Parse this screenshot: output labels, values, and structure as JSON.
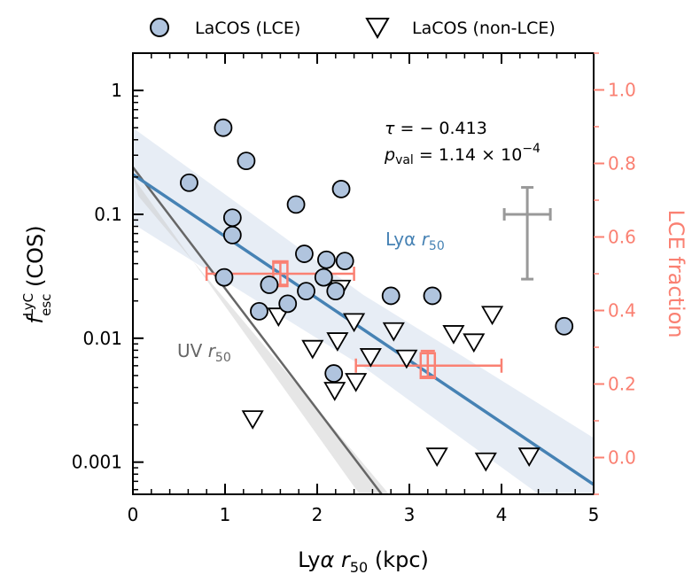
{
  "chart_data": {
    "type": "scatter",
    "x_axis": {
      "label_prefix": "Ly",
      "label_greek": "α",
      "label_var": "r",
      "label_sub": "50",
      "label_suffix": " (kpc)",
      "range": [
        0,
        5
      ],
      "ticks": [
        "0",
        "1",
        "2",
        "3",
        "4",
        "5"
      ]
    },
    "y_axis": {
      "label_var": "f",
      "label_sup": "LyC",
      "label_sub": "esc",
      "label_suffix": " (COS)",
      "scale": "log",
      "range": [
        0.00055,
        2.0
      ],
      "ticks": [
        {
          "v": 1,
          "label": "1"
        },
        {
          "v": 0.1,
          "label": "0.1"
        },
        {
          "v": 0.01,
          "label": "0.01"
        },
        {
          "v": 0.001,
          "label": "0.001"
        }
      ]
    },
    "y2_axis": {
      "label": "LCE fraction",
      "color": "#FA8072",
      "range": [
        -0.1,
        1.1
      ],
      "ticks": [
        "0.0",
        "0.2",
        "0.4",
        "0.6",
        "0.8",
        "1.0"
      ]
    },
    "legend": [
      {
        "label": "LaCOS (LCE)",
        "marker": "circle",
        "color": "#B0C4DE"
      },
      {
        "label": "LaCOS (non-LCE)",
        "marker": "triangle-down",
        "color": "#ffffff"
      }
    ],
    "series": [
      {
        "name": "LaCOS (LCE)",
        "points": [
          [
            0.98,
            0.5
          ],
          [
            1.23,
            0.27
          ],
          [
            0.61,
            0.18
          ],
          [
            1.77,
            0.12
          ],
          [
            2.26,
            0.16
          ],
          [
            1.08,
            0.094
          ],
          [
            1.08,
            0.068
          ],
          [
            1.86,
            0.048
          ],
          [
            2.1,
            0.043
          ],
          [
            2.3,
            0.042
          ],
          [
            0.99,
            0.031
          ],
          [
            2.07,
            0.031
          ],
          [
            1.48,
            0.027
          ],
          [
            1.88,
            0.024
          ],
          [
            2.2,
            0.024
          ],
          [
            2.8,
            0.022
          ],
          [
            3.25,
            0.022
          ],
          [
            1.68,
            0.019
          ],
          [
            1.37,
            0.0165
          ],
          [
            2.18,
            0.0052
          ],
          [
            4.68,
            0.0125
          ]
        ]
      },
      {
        "name": "LaCOS (non-LCE)",
        "points": [
          [
            1.58,
            0.0155
          ],
          [
            2.4,
            0.014
          ],
          [
            2.83,
            0.0118
          ],
          [
            3.9,
            0.016
          ],
          [
            3.48,
            0.0112
          ],
          [
            3.7,
            0.0096
          ],
          [
            2.22,
            0.0098
          ],
          [
            1.95,
            0.0085
          ],
          [
            2.58,
            0.0073
          ],
          [
            2.97,
            0.0071
          ],
          [
            2.42,
            0.0046
          ],
          [
            2.19,
            0.0039
          ],
          [
            1.3,
            0.0023
          ],
          [
            3.3,
            0.00115
          ],
          [
            3.83,
            0.00105
          ],
          [
            4.3,
            0.00115
          ],
          [
            2.25,
            0.026
          ]
        ]
      }
    ],
    "fits": [
      {
        "name": "Lyα r50",
        "color": "#4682B4",
        "x0": 0,
        "y0": 0.21,
        "x1": 5,
        "y1": 0.00066,
        "band_lower_factor": 0.5,
        "band_upper_factor": 1.9
      },
      {
        "name": "UV r50",
        "color": "#666666",
        "x0": 0,
        "y0": 0.24,
        "x1": 2.7,
        "y1": 0.00055,
        "band": [
          [
            0.06,
            0.14
          ],
          [
            2.78,
            0.00055
          ],
          [
            2.46,
            0.00055
          ],
          [
            0,
            0.2
          ]
        ]
      }
    ],
    "lce_fraction_bins": [
      {
        "x": 1.6,
        "x_err": [
          0.8,
          2.4
        ],
        "frac": 0.5,
        "frac_err": [
          0.47,
          0.53
        ]
      },
      {
        "x": 3.2,
        "x_err": [
          2.42,
          4.0
        ],
        "frac": 0.25,
        "frac_err": [
          0.22,
          0.29
        ]
      }
    ],
    "typical_error": {
      "x": 4.28,
      "y": 0.1,
      "x_err": [
        4.03,
        4.53
      ],
      "y_err": [
        0.03,
        0.165
      ]
    },
    "annotations": {
      "tau": {
        "symbol": "τ",
        "text": " = − 0.413"
      },
      "pval": {
        "symbol": "p",
        "sub": "val",
        "text": " = 1.14 × 10",
        "sup": "−4"
      },
      "lya_label": {
        "prefix": "Lyα ",
        "var": "r",
        "sub": "50"
      },
      "uv_label": {
        "prefix": "UV ",
        "var": "r",
        "sub": "50"
      }
    }
  }
}
